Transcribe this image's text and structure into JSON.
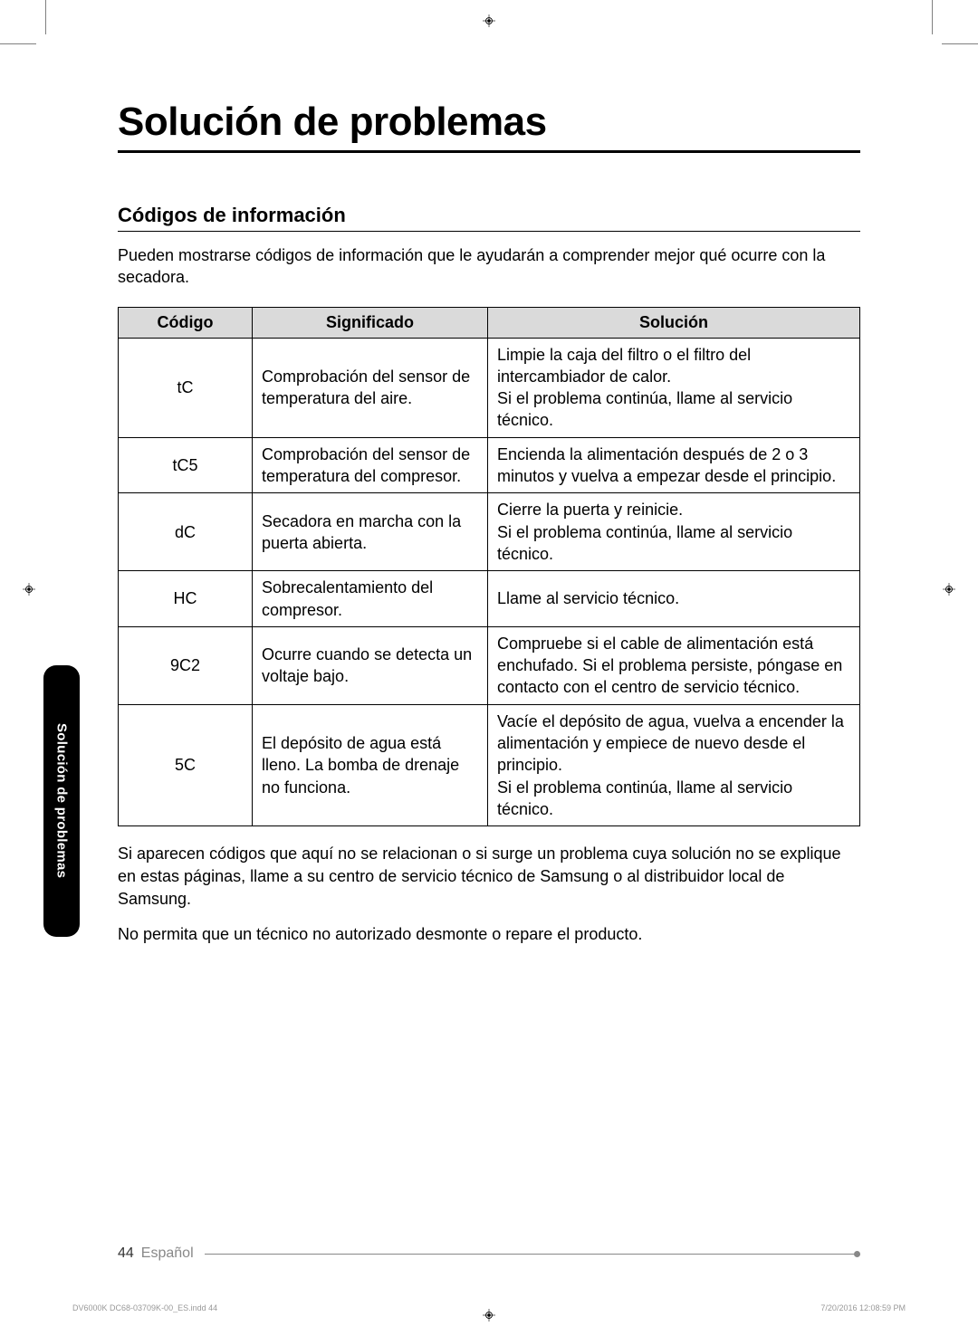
{
  "cropMarks": {
    "iconName": "registration-mark"
  },
  "title": "Solución de problemas",
  "subtitle": "Códigos de información",
  "intro": "Pueden mostrarse códigos de información que le ayudarán a comprender mejor qué ocurre con la secadora.",
  "table": {
    "headers": {
      "code": "Código",
      "meaning": "Significado",
      "solution": "Solución"
    },
    "rows": [
      {
        "code": "tC",
        "meaning": "Comprobación del sensor de temperatura del aire.",
        "solution": "Limpie la caja del filtro o el filtro del intercambiador de calor.\nSi el problema continúa, llame al servicio técnico."
      },
      {
        "code": "tC5",
        "meaning": "Comprobación del sensor de temperatura del compresor.",
        "solution": "Encienda la alimentación después de 2 o 3 minutos y vuelva a empezar desde el principio."
      },
      {
        "code": "dC",
        "meaning": "Secadora en marcha con la puerta abierta.",
        "solution": "Cierre la puerta y reinicie.\nSi el problema continúa, llame al servicio técnico."
      },
      {
        "code": "HC",
        "meaning": "Sobrecalentamiento del compresor.",
        "solution": "Llame al servicio técnico."
      },
      {
        "code": "9C2",
        "meaning": "Ocurre cuando se detecta un voltaje bajo.",
        "solution": "Compruebe si el cable de alimentación está enchufado. Si el problema persiste, póngase en contacto con el centro de servicio técnico."
      },
      {
        "code": "5C",
        "meaning": "El depósito de agua está lleno. La bomba de drenaje no funciona.",
        "solution": "Vacíe el depósito de agua, vuelva a encender la alimentación y empiece de nuevo desde el principio.\nSi el problema continúa, llame al servicio técnico."
      }
    ]
  },
  "afterParagraphs": [
    "Si aparecen códigos que aquí no se relacionan o si surge un problema cuya solución no se explique en estas páginas, llame a su centro de servicio técnico de Samsung o al distribuidor local de Samsung.",
    "No permita que un técnico no autorizado desmonte o repare el producto."
  ],
  "sideTab": "Solución de problemas",
  "footer": {
    "pageNumber": "44",
    "language": "Español"
  },
  "imprint": {
    "left": "DV6000K DC68-03709K-00_ES.indd   44",
    "right": "7/20/2016   12:08:59 PM"
  }
}
